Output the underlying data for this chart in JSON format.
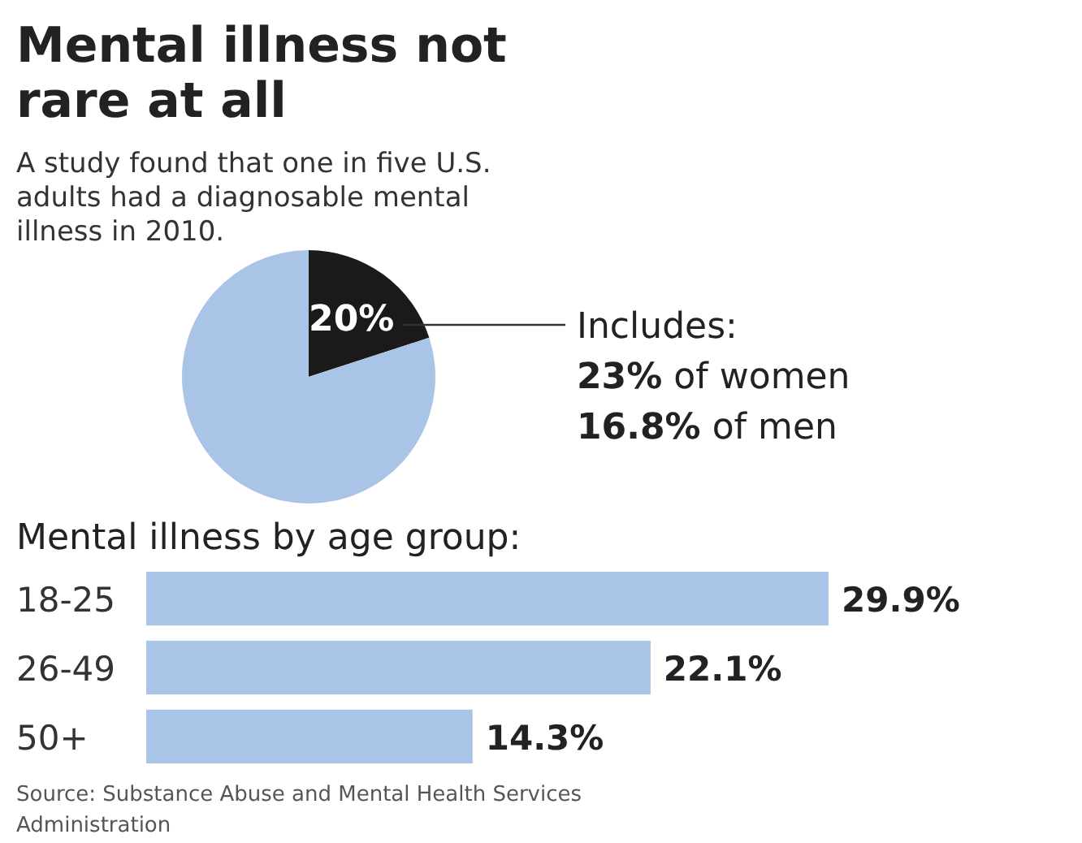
{
  "chart_data": [
    {
      "type": "pie",
      "title": "Mental illness not rare at all",
      "subtitle": "A study found that one in five U.S. adults had a diagnosable mental illness in 2010.",
      "categories": [
        null,
        null
      ],
      "values": [
        20,
        80
      ],
      "colors": [
        "#1a1a1a",
        "#a9c4e6"
      ],
      "value_labels": [
        "20%",
        null
      ],
      "annotations": [
        "Includes:",
        "23% of women",
        "16.8% of men"
      ]
    },
    {
      "type": "bar",
      "orientation": "horizontal",
      "title": "Mental illness by age group:",
      "categories": [
        "18-25",
        "26-49",
        "50+"
      ],
      "values": [
        29.9,
        22.1,
        14.3
      ],
      "color": "#a9c4e6",
      "value_labels": [
        "29.9%",
        "22.1%",
        "14.3%"
      ],
      "annotations": [
        "Source: Substance Abuse and Mental Health Services Administration"
      ]
    }
  ]
}
